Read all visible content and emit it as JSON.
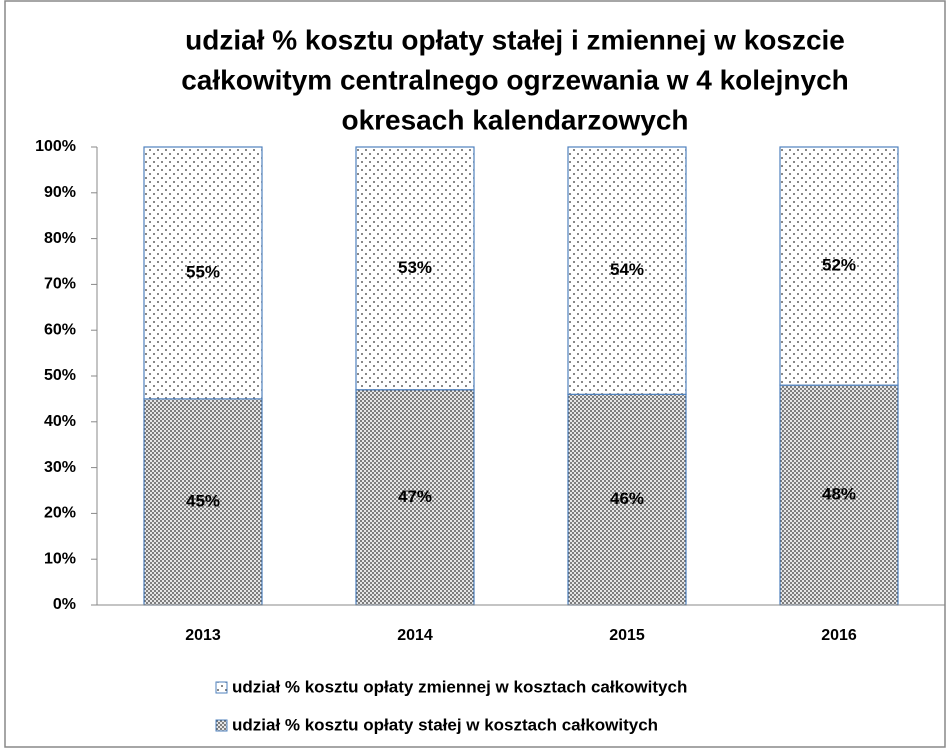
{
  "chart_data": {
    "type": "stacked_bar",
    "title": [
      "udział % kosztu opłaty stałej i zmiennej w koszcie",
      "całkowitym centralnego ogrzewania w 4 kolejnych",
      "okresach kalendarzowych"
    ],
    "categories": [
      "2013",
      "2014",
      "2015",
      "2016"
    ],
    "series": [
      {
        "name": "udział % kosztu opłaty stałej w kosztach całkowitych",
        "color": "#4f81bd",
        "pattern": "dense-dots",
        "values": [
          45,
          47,
          46,
          48
        ],
        "value_labels": [
          "45%",
          "47%",
          "46%",
          "48%"
        ]
      },
      {
        "name": "udział % kosztu opłaty zmiennej w kosztach całkowitych",
        "color": "#4f81bd",
        "pattern": "sparse-dots",
        "values": [
          55,
          53,
          54,
          52
        ],
        "value_labels": [
          "55%",
          "53%",
          "54%",
          "52%"
        ]
      }
    ],
    "ylim": [
      0,
      100
    ],
    "yticks": [
      {
        "value": 0,
        "label": "0%"
      },
      {
        "value": 10,
        "label": "10%"
      },
      {
        "value": 20,
        "label": "20%"
      },
      {
        "value": 30,
        "label": "30%"
      },
      {
        "value": 40,
        "label": "40%"
      },
      {
        "value": 50,
        "label": "50%"
      },
      {
        "value": 60,
        "label": "60%"
      },
      {
        "value": 70,
        "label": "70%"
      },
      {
        "value": 80,
        "label": "80%"
      },
      {
        "value": 90,
        "label": "90%"
      },
      {
        "value": 100,
        "label": "100%"
      }
    ],
    "grid": false,
    "legend": "bottom"
  }
}
